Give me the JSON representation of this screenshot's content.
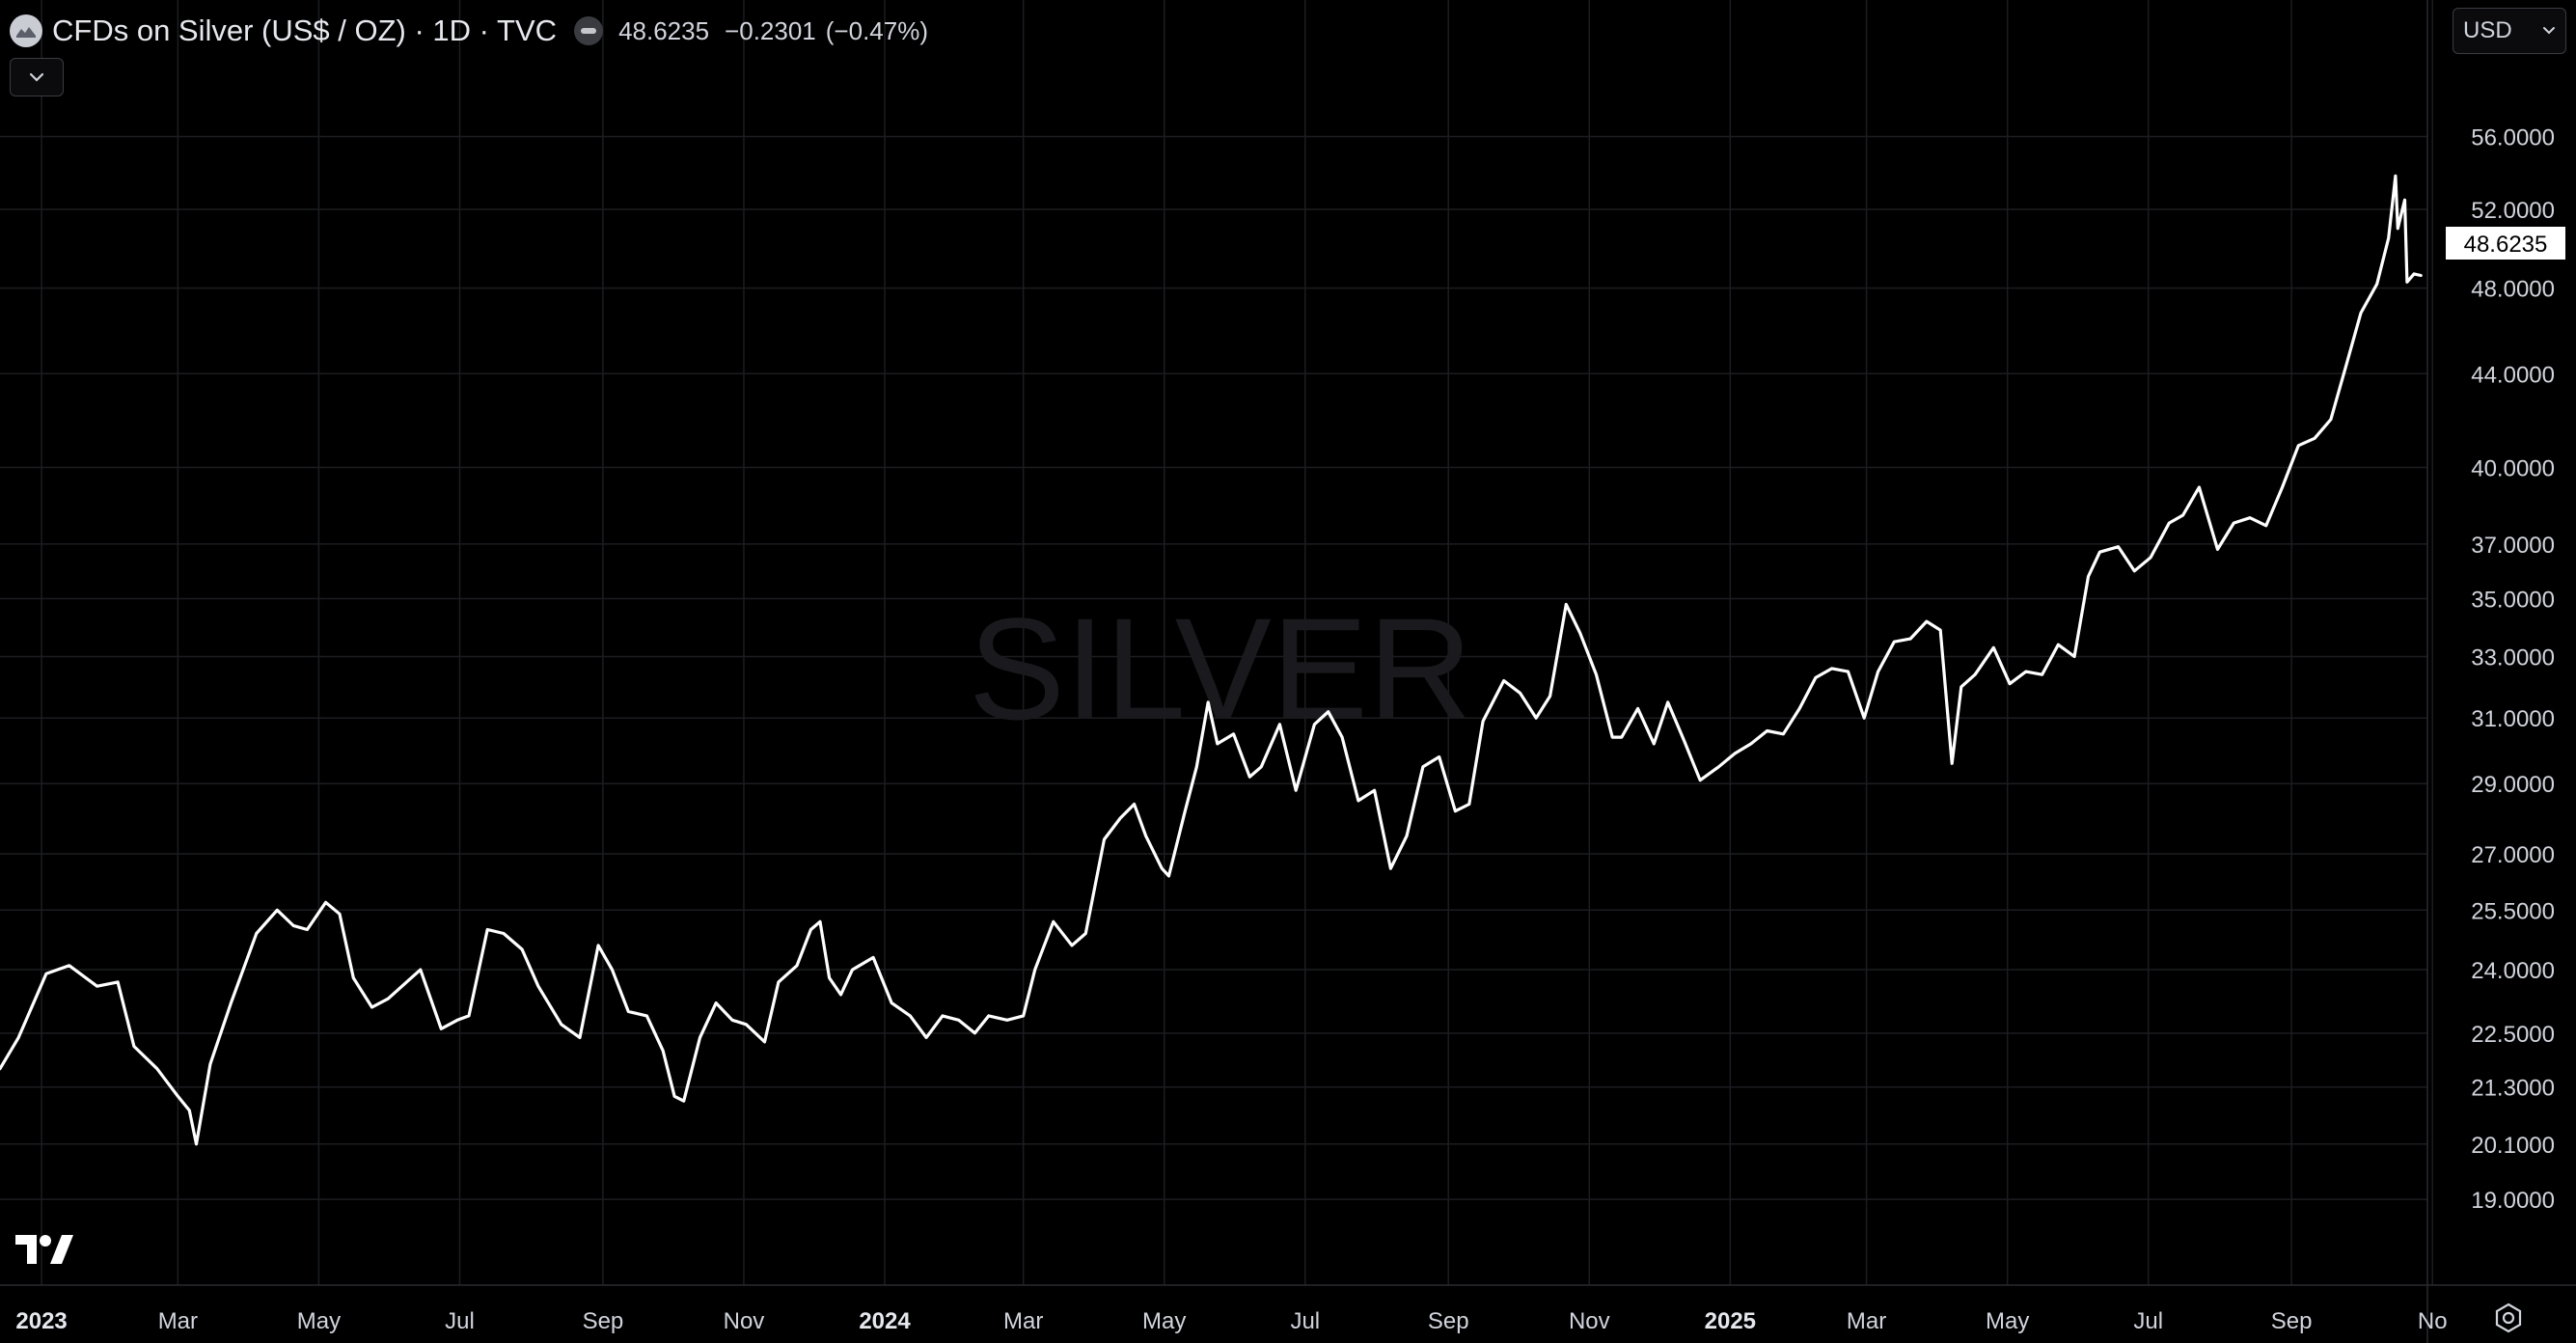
{
  "header": {
    "title": "CFDs on Silver (US$ / OZ) · 1D · TVC",
    "last_price": "48.6235",
    "change": "−0.2301",
    "change_pct": "(−0.47%)"
  },
  "currency": {
    "label": "USD"
  },
  "watermark": "SILVER",
  "icons": {
    "symbol": "silver-symbol-icon",
    "collapse": "chevron-down-icon",
    "currency": "chevron-down-icon",
    "logo": "tradingview-logo-icon",
    "settings": "gear-icon"
  },
  "colors": {
    "background": "#000000",
    "line": "#ffffff",
    "grid": "#1c1d21",
    "text": "#d1d4dc",
    "watermark": "#1a1a1e"
  },
  "chart_data": {
    "type": "line",
    "y_scale": "log",
    "ylim": [
      18.2,
      58.5
    ],
    "xlim": [
      "2022-12-14",
      "2025-11-03"
    ],
    "grid": true,
    "last_value_label": "48.6235",
    "y_ticks": [
      "56.0000",
      "52.0000",
      "48.0000",
      "44.0000",
      "40.0000",
      "37.0000",
      "35.0000",
      "33.0000",
      "31.0000",
      "29.0000",
      "27.0000",
      "25.5000",
      "24.0000",
      "22.5000",
      "21.3000",
      "20.1000",
      "19.0000"
    ],
    "x_ticks": [
      {
        "label": "2023",
        "date": "2023-01-01",
        "bold": true
      },
      {
        "label": "Mar",
        "date": "2023-03-01"
      },
      {
        "label": "May",
        "date": "2023-05-01"
      },
      {
        "label": "Jul",
        "date": "2023-07-01"
      },
      {
        "label": "Sep",
        "date": "2023-09-01"
      },
      {
        "label": "Nov",
        "date": "2023-11-01"
      },
      {
        "label": "2024",
        "date": "2024-01-01",
        "bold": true
      },
      {
        "label": "Mar",
        "date": "2024-03-01"
      },
      {
        "label": "May",
        "date": "2024-05-01"
      },
      {
        "label": "Jul",
        "date": "2024-07-01"
      },
      {
        "label": "Sep",
        "date": "2024-09-01"
      },
      {
        "label": "Nov",
        "date": "2024-11-01"
      },
      {
        "label": "2025",
        "date": "2025-01-01",
        "bold": true
      },
      {
        "label": "Mar",
        "date": "2025-03-01"
      },
      {
        "label": "May",
        "date": "2025-05-01"
      },
      {
        "label": "Jul",
        "date": "2025-07-01"
      },
      {
        "label": "Sep",
        "date": "2025-09-01"
      },
      {
        "label": "No",
        "date": "2025-11-01"
      }
    ],
    "series": [
      {
        "points": [
          [
            "2022-12-14",
            21.7
          ],
          [
            "2022-12-22",
            22.4
          ],
          [
            "2023-01-03",
            23.9
          ],
          [
            "2023-01-13",
            24.1
          ],
          [
            "2023-01-25",
            23.6
          ],
          [
            "2023-02-03",
            23.7
          ],
          [
            "2023-02-10",
            22.2
          ],
          [
            "2023-02-20",
            21.7
          ],
          [
            "2023-03-01",
            21.1
          ],
          [
            "2023-03-06",
            20.8
          ],
          [
            "2023-03-09",
            20.1
          ],
          [
            "2023-03-15",
            21.8
          ],
          [
            "2023-03-24",
            23.2
          ],
          [
            "2023-04-04",
            24.9
          ],
          [
            "2023-04-13",
            25.5
          ],
          [
            "2023-04-20",
            25.1
          ],
          [
            "2023-04-26",
            25.0
          ],
          [
            "2023-05-04",
            25.7
          ],
          [
            "2023-05-10",
            25.4
          ],
          [
            "2023-05-16",
            23.8
          ],
          [
            "2023-05-24",
            23.1
          ],
          [
            "2023-05-31",
            23.3
          ],
          [
            "2023-06-08",
            23.7
          ],
          [
            "2023-06-14",
            24.0
          ],
          [
            "2023-06-23",
            22.6
          ],
          [
            "2023-06-30",
            22.8
          ],
          [
            "2023-07-05",
            22.9
          ],
          [
            "2023-07-13",
            25.0
          ],
          [
            "2023-07-20",
            24.9
          ],
          [
            "2023-07-28",
            24.5
          ],
          [
            "2023-08-04",
            23.6
          ],
          [
            "2023-08-14",
            22.7
          ],
          [
            "2023-08-22",
            22.4
          ],
          [
            "2023-08-30",
            24.6
          ],
          [
            "2023-09-05",
            24.0
          ],
          [
            "2023-09-12",
            23.0
          ],
          [
            "2023-09-20",
            22.9
          ],
          [
            "2023-09-27",
            22.1
          ],
          [
            "2023-10-02",
            21.1
          ],
          [
            "2023-10-06",
            21.0
          ],
          [
            "2023-10-13",
            22.4
          ],
          [
            "2023-10-20",
            23.2
          ],
          [
            "2023-10-27",
            22.8
          ],
          [
            "2023-11-02",
            22.7
          ],
          [
            "2023-11-10",
            22.3
          ],
          [
            "2023-11-16",
            23.7
          ],
          [
            "2023-11-24",
            24.1
          ],
          [
            "2023-11-30",
            25.0
          ],
          [
            "2023-12-04",
            25.2
          ],
          [
            "2023-12-08",
            23.8
          ],
          [
            "2023-12-13",
            23.4
          ],
          [
            "2023-12-18",
            24.0
          ],
          [
            "2023-12-27",
            24.3
          ],
          [
            "2024-01-04",
            23.2
          ],
          [
            "2024-01-12",
            22.9
          ],
          [
            "2024-01-19",
            22.4
          ],
          [
            "2024-01-26",
            22.9
          ],
          [
            "2024-02-02",
            22.8
          ],
          [
            "2024-02-09",
            22.5
          ],
          [
            "2024-02-15",
            22.9
          ],
          [
            "2024-02-23",
            22.8
          ],
          [
            "2024-03-01",
            22.9
          ],
          [
            "2024-03-06",
            24.0
          ],
          [
            "2024-03-14",
            25.2
          ],
          [
            "2024-03-22",
            24.6
          ],
          [
            "2024-03-28",
            24.9
          ],
          [
            "2024-04-05",
            27.4
          ],
          [
            "2024-04-12",
            28.0
          ],
          [
            "2024-04-18",
            28.4
          ],
          [
            "2024-04-23",
            27.5
          ],
          [
            "2024-04-30",
            26.6
          ],
          [
            "2024-05-03",
            26.4
          ],
          [
            "2024-05-10",
            28.2
          ],
          [
            "2024-05-15",
            29.5
          ],
          [
            "2024-05-20",
            31.5
          ],
          [
            "2024-05-24",
            30.2
          ],
          [
            "2024-05-31",
            30.5
          ],
          [
            "2024-06-07",
            29.2
          ],
          [
            "2024-06-12",
            29.5
          ],
          [
            "2024-06-20",
            30.8
          ],
          [
            "2024-06-27",
            28.8
          ],
          [
            "2024-07-05",
            30.8
          ],
          [
            "2024-07-11",
            31.2
          ],
          [
            "2024-07-17",
            30.4
          ],
          [
            "2024-07-24",
            28.5
          ],
          [
            "2024-07-31",
            28.8
          ],
          [
            "2024-08-07",
            26.6
          ],
          [
            "2024-08-14",
            27.5
          ],
          [
            "2024-08-21",
            29.5
          ],
          [
            "2024-08-28",
            29.8
          ],
          [
            "2024-09-04",
            28.2
          ],
          [
            "2024-09-10",
            28.4
          ],
          [
            "2024-09-16",
            30.9
          ],
          [
            "2024-09-25",
            32.2
          ],
          [
            "2024-10-02",
            31.8
          ],
          [
            "2024-10-09",
            31.0
          ],
          [
            "2024-10-15",
            31.7
          ],
          [
            "2024-10-22",
            34.8
          ],
          [
            "2024-10-28",
            33.8
          ],
          [
            "2024-11-04",
            32.4
          ],
          [
            "2024-11-11",
            30.4
          ],
          [
            "2024-11-15",
            30.4
          ],
          [
            "2024-11-22",
            31.3
          ],
          [
            "2024-11-29",
            30.2
          ],
          [
            "2024-12-05",
            31.5
          ],
          [
            "2024-12-12",
            30.3
          ],
          [
            "2024-12-19",
            29.1
          ],
          [
            "2024-12-27",
            29.5
          ],
          [
            "2025-01-03",
            29.9
          ],
          [
            "2025-01-10",
            30.2
          ],
          [
            "2025-01-17",
            30.6
          ],
          [
            "2025-01-24",
            30.5
          ],
          [
            "2025-01-31",
            31.3
          ],
          [
            "2025-02-07",
            32.3
          ],
          [
            "2025-02-14",
            32.6
          ],
          [
            "2025-02-21",
            32.5
          ],
          [
            "2025-02-28",
            31.0
          ],
          [
            "2025-03-06",
            32.5
          ],
          [
            "2025-03-13",
            33.5
          ],
          [
            "2025-03-20",
            33.6
          ],
          [
            "2025-03-27",
            34.2
          ],
          [
            "2025-04-02",
            33.9
          ],
          [
            "2025-04-07",
            29.6
          ],
          [
            "2025-04-11",
            32.0
          ],
          [
            "2025-04-17",
            32.4
          ],
          [
            "2025-04-25",
            33.3
          ],
          [
            "2025-05-02",
            32.1
          ],
          [
            "2025-05-09",
            32.5
          ],
          [
            "2025-05-16",
            32.4
          ],
          [
            "2025-05-23",
            33.4
          ],
          [
            "2025-05-30",
            33.0
          ],
          [
            "2025-06-05",
            35.8
          ],
          [
            "2025-06-10",
            36.7
          ],
          [
            "2025-06-18",
            36.9
          ],
          [
            "2025-06-25",
            36.0
          ],
          [
            "2025-07-02",
            36.5
          ],
          [
            "2025-07-10",
            37.8
          ],
          [
            "2025-07-16",
            38.1
          ],
          [
            "2025-07-23",
            39.2
          ],
          [
            "2025-07-31",
            36.8
          ],
          [
            "2025-08-07",
            37.8
          ],
          [
            "2025-08-14",
            38.0
          ],
          [
            "2025-08-21",
            37.7
          ],
          [
            "2025-08-28",
            39.2
          ],
          [
            "2025-09-04",
            40.9
          ],
          [
            "2025-09-11",
            41.2
          ],
          [
            "2025-09-18",
            42.0
          ],
          [
            "2025-09-25",
            44.5
          ],
          [
            "2025-10-01",
            46.8
          ],
          [
            "2025-10-08",
            48.2
          ],
          [
            "2025-10-13",
            50.5
          ],
          [
            "2025-10-16",
            53.8
          ],
          [
            "2025-10-17",
            51.0
          ],
          [
            "2025-10-20",
            52.5
          ],
          [
            "2025-10-21",
            48.3
          ],
          [
            "2025-10-24",
            48.7
          ],
          [
            "2025-10-27",
            48.62
          ]
        ]
      }
    ]
  }
}
